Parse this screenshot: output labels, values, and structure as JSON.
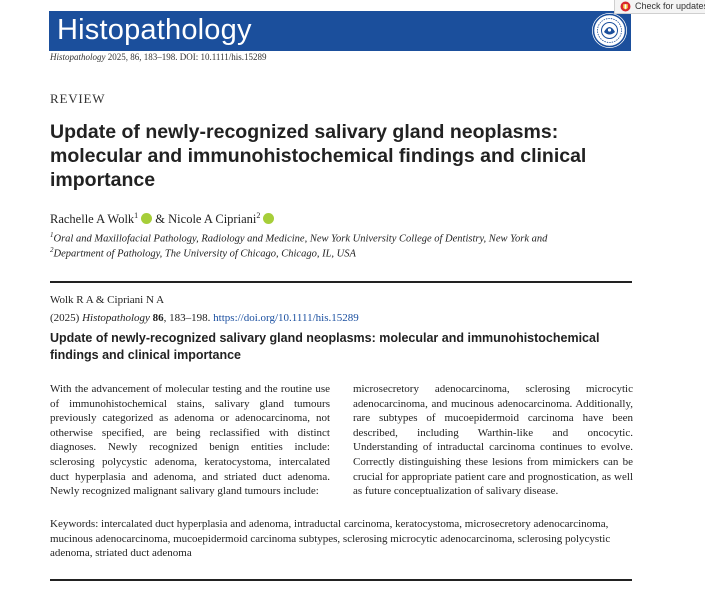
{
  "journal": {
    "name": "Histopathology",
    "banner_color": "#1b4f9c",
    "seal_icon": "society-seal-icon",
    "citation_journal": "Histopathology",
    "citation_rest": "2025, 86, 183–198. DOI: 10.1111/his.15289"
  },
  "check_updates": {
    "label": "Check for updates",
    "icon": "crossmark-icon"
  },
  "article": {
    "type_label": "REVIEW",
    "title": "Update of newly-recognized salivary gland neoplasms: molecular and immunohistochemical findings and clinical importance",
    "authors": [
      {
        "name": "Rachelle A Wolk",
        "sup": "1"
      },
      {
        "name": "Nicole A Cipriani",
        "sup": "2"
      }
    ],
    "author_separator": "&",
    "affiliations": [
      {
        "sup": "1",
        "text": "Oral and Maxillofacial Pathology, Radiology and Medicine, New York University College of Dentistry, New York and"
      },
      {
        "sup": "2",
        "text": "Department of Pathology, The University of Chicago, Chicago, IL, USA"
      }
    ]
  },
  "citation_box": {
    "authors": "Wolk R A & Cipriani N A",
    "year": "(2025)",
    "journal": "Histopathology",
    "volume": "86",
    "pages": ", 183–198.",
    "doi_link": "https://doi.org/10.1111/his.15289",
    "title": "Update of newly-recognized salivary gland neoplasms: molecular and immunohistochemical findings and clinical importance"
  },
  "abstract": {
    "text": "With the advancement of molecular testing and the routine use of immunohistochemical stains, salivary gland tumours previously categorized as adenoma or adenocarcinoma, not otherwise specified, are being reclassified with distinct diagnoses. Newly recognized benign entities include: sclerosing polycystic adenoma, keratocystoma, intercalated duct hyperplasia and adenoma, and striated duct adenoma. Newly recognized malignant salivary gland tumours include: microsecretory adenocarcinoma, sclerosing microcytic adenocarcinoma, and mucinous adenocarcinoma. Additionally, rare subtypes of mucoepidermoid carcinoma have been described, including Warthin-like and oncocytic. Understanding of intraductal carcinoma continues to evolve. Correctly distinguishing these lesions from mimickers can be crucial for appropriate patient care and prognostication, as well as future conceptualization of salivary disease."
  },
  "keywords": {
    "label": "Keywords:",
    "text": "intercalated duct hyperplasia and adenoma, intraductal carcinoma, keratocystoma, microsecretory adenocarcinoma, mucinous adenocarcinoma, mucoepidermoid carcinoma subtypes, sclerosing microcytic adenocarcinoma, sclerosing polycystic adenoma, striated duct adenoma"
  }
}
